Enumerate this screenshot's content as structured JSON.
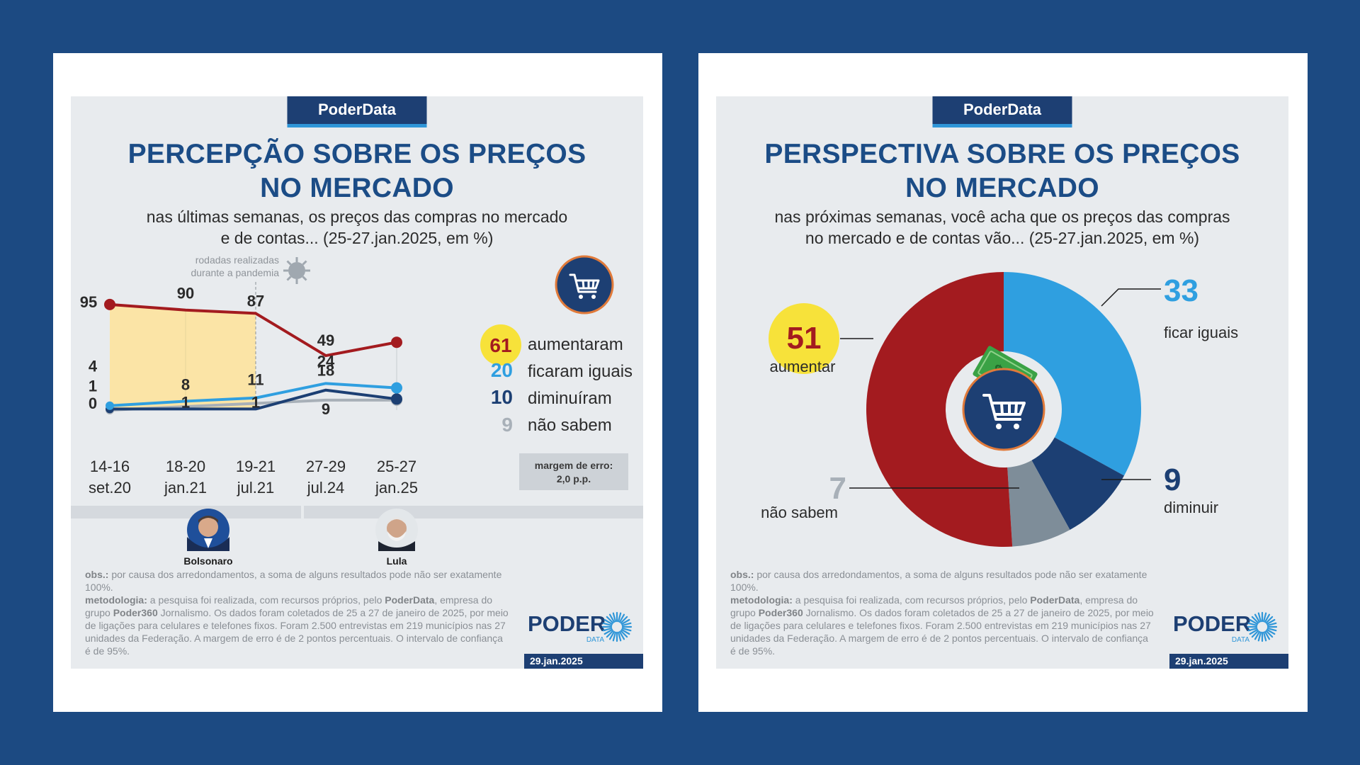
{
  "left": {
    "brand": "PoderData",
    "title_line1": "PERCEPÇÃO SOBRE OS PREÇOS",
    "title_line2": "NO MERCADO",
    "subtitle_line1": "nas últimas semanas, os preços das compras no mercado",
    "subtitle_line2": "e de contas... (25-27.jan.2025, em %)",
    "pandemic_note_line1": "rodadas realizadas",
    "pandemic_note_line2": "durante a pandemia",
    "margin_line1": "margem de erro:",
    "margin_line2": "2,0 p.p.",
    "bolsonaro_label": "Bolsonaro",
    "lula_label": "Lula",
    "obs_label": "obs.:",
    "obs_text": "por causa dos arredondamentos, a soma de alguns resultados pode não ser exatamente 100%.",
    "method_label": "metodologia:",
    "method_text_1": "a pesquisa foi realizada, com recursos próprios, pelo",
    "method_bold_1": "PoderData",
    "method_text_2": ", empresa do grupo",
    "method_bold_2": "Poder360",
    "method_text_3": "Jornalismo. Os dados foram coletados de 25 a 27 de janeiro de 2025, por meio de ligações para celulares e telefones fixos. Foram 2.500 entrevistas em 219 municípios nas 27 unidades da Federação. A margem de erro é de 2 pontos percentuais. O intervalo de confiança é de 95%.",
    "logo_word": "PODER",
    "logo_sub": "DATA",
    "date": "29.jan.2025"
  },
  "right": {
    "brand": "PoderData",
    "title_line1": "PERSPECTIVA SOBRE OS PREÇOS",
    "title_line2": "NO MERCADO",
    "subtitle_line1": "nas próximas semanas, você acha que os preços das compras",
    "subtitle_line2": "no mercado e de contas vão... (25-27.jan.2025, em %)",
    "obs_label": "obs.:",
    "obs_text": "por causa dos arredondamentos, a soma de alguns resultados pode não ser exatamente 100%.",
    "method_label": "metodologia:",
    "method_text_1": "a pesquisa foi realizada, com recursos próprios, pelo",
    "method_bold_1": "PoderData",
    "method_text_2": ", empresa do grupo",
    "method_bold_2": "Poder360",
    "method_text_3": "Jornalismo. Os dados foram coletados de 25 a 27 de janeiro de 2025, por meio de ligações para celulares e telefones fixos. Foram 2.500 entrevistas em 219 municípios nas 27 unidades da Federação. A margem de erro é de 2 pontos percentuais. O intervalo de confiança é de 95%.",
    "logo_word": "PODER",
    "logo_sub": "DATA",
    "date": "29.jan.2025"
  },
  "colors": {
    "aumentaram": "#a31b1f",
    "ficaram_iguais": "#2f9fe0",
    "diminuiram": "#1c3f73",
    "nao_sabem": "#a8b0b8",
    "pandemic_fill": "#fbe4a6",
    "highlight": "#f7e23a"
  },
  "chart_data": [
    {
      "type": "line",
      "categories": [
        "14-16\nset.20",
        "18-20\njan.21",
        "19-21\njul.21",
        "27-29\njul.24",
        "25-27\njan.25"
      ],
      "tick_line1": [
        "14-16",
        "18-20",
        "19-21",
        "27-29",
        "25-27"
      ],
      "tick_line2": [
        "set.20",
        "jan.21",
        "jul.21",
        "jul.24",
        "jan.25"
      ],
      "series": [
        {
          "name": "aumentaram",
          "values": [
            95,
            90,
            87,
            49,
            61
          ]
        },
        {
          "name": "ficaram iguais",
          "values": [
            4,
            8,
            11,
            24,
            20
          ]
        },
        {
          "name": "diminuíram",
          "values": [
            1,
            1,
            1,
            18,
            10
          ]
        },
        {
          "name": "não sabem",
          "values": [
            0,
            null,
            null,
            9,
            9
          ]
        }
      ],
      "pandemic_rounds": [
        "14-16\nset.20",
        "18-20\njan.21",
        "19-21\njul.21"
      ],
      "legend_placement": "right"
    },
    {
      "type": "pie",
      "style": "donut",
      "slices": [
        {
          "name": "ficar iguais",
          "value": 33
        },
        {
          "name": "diminuir",
          "value": 9
        },
        {
          "name": "não sabem",
          "value": 7
        },
        {
          "name": "aumentar",
          "value": 51
        }
      ]
    }
  ]
}
